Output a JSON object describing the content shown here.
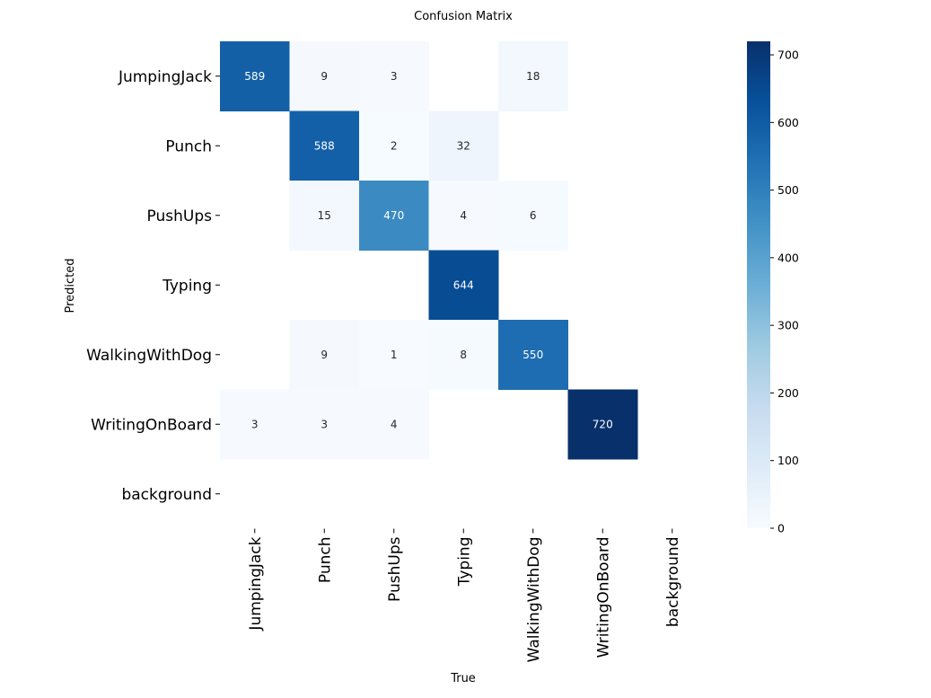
{
  "chart_data": {
    "type": "heatmap",
    "title": "Confusion Matrix",
    "xlabel": "True",
    "ylabel": "Predicted",
    "x_categories": [
      "JumpingJack",
      "Punch",
      "PushUps",
      "Typing",
      "WalkingWithDog",
      "WritingOnBoard",
      "background"
    ],
    "y_categories": [
      "JumpingJack",
      "Punch",
      "PushUps",
      "Typing",
      "WalkingWithDog",
      "WritingOnBoard",
      "background"
    ],
    "matrix": [
      [
        589,
        9,
        3,
        null,
        18,
        null,
        null
      ],
      [
        null,
        588,
        2,
        32,
        null,
        null,
        null
      ],
      [
        null,
        15,
        470,
        4,
        6,
        null,
        null
      ],
      [
        null,
        null,
        null,
        644,
        null,
        null,
        null
      ],
      [
        null,
        9,
        1,
        8,
        550,
        null,
        null
      ],
      [
        3,
        3,
        4,
        null,
        null,
        720,
        null
      ],
      [
        null,
        null,
        null,
        null,
        null,
        null,
        null
      ]
    ],
    "colorbar": {
      "min": 0,
      "max": 720,
      "ticks": [
        0,
        100,
        200,
        300,
        400,
        500,
        600,
        700
      ]
    },
    "colormap": "Blues",
    "grid": false
  }
}
